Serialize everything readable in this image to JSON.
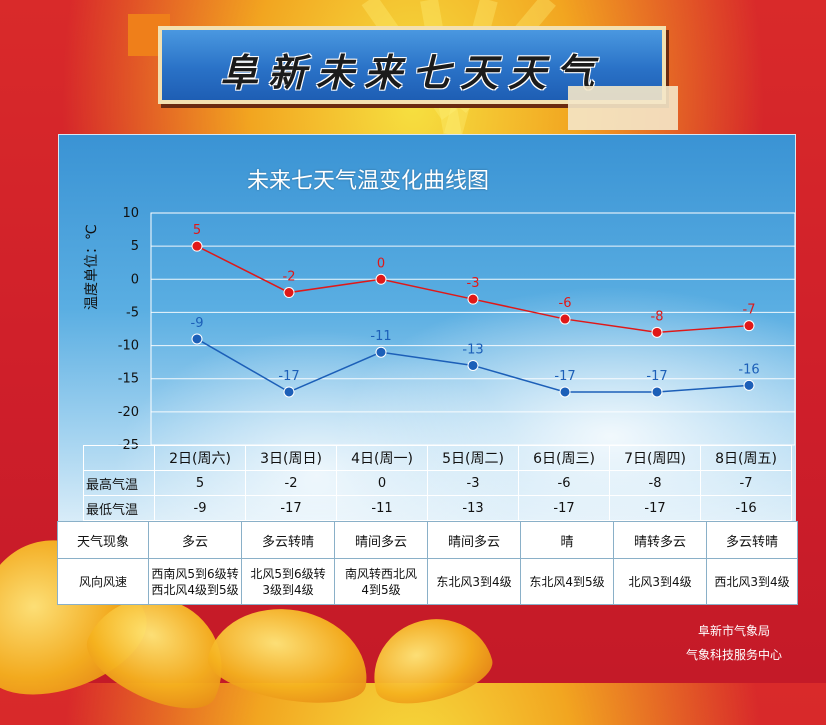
{
  "banner": {
    "title": "阜新未来七天天气"
  },
  "chart_data": {
    "type": "line",
    "title": "未来七天气温变化曲线图",
    "ylabel": "温度单位：℃",
    "ylim": [
      -25,
      10
    ],
    "yticks": [
      10,
      5,
      0,
      -5,
      -10,
      -15,
      -20,
      -25
    ],
    "categories": [
      "2日(周六)",
      "3日(周日)",
      "4日(周一)",
      "5日(周二)",
      "6日(周三)",
      "7日(周四)",
      "8日(周五)"
    ],
    "series": [
      {
        "name": "最高气温",
        "color": "#e01818",
        "values": [
          5,
          -2,
          0,
          -3,
          -6,
          -8,
          -7
        ]
      },
      {
        "name": "最低气温",
        "color": "#1c5fb8",
        "values": [
          -9,
          -17,
          -11,
          -13,
          -17,
          -17,
          -16
        ]
      }
    ]
  },
  "table": {
    "high_label": "最高气温",
    "low_label": "最低气温",
    "weather_label": "天气现象",
    "wind_label": "风向风速",
    "weather": [
      "多云",
      "多云转晴",
      "晴间多云",
      "晴间多云",
      "晴",
      "晴转多云",
      "多云转晴"
    ],
    "wind": [
      [
        "西南风5到6级转",
        "西北风4级到5级"
      ],
      [
        "北风5到6级转",
        "3级到4级"
      ],
      [
        "南风转西北风",
        "4到5级"
      ],
      [
        "东北风3到4级",
        ""
      ],
      [
        "东北风4到5级",
        ""
      ],
      [
        "北风3到4级",
        ""
      ],
      [
        "西北风3到4级",
        ""
      ]
    ]
  },
  "footer": {
    "line1": "阜新市气象局",
    "line2": "气象科技服务中心"
  }
}
